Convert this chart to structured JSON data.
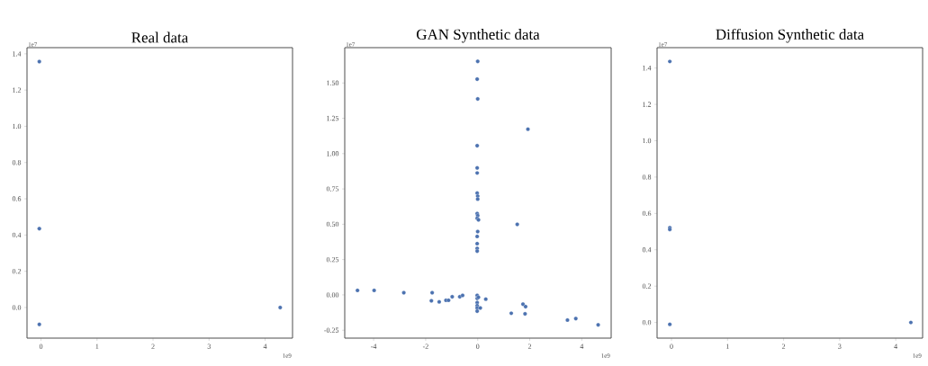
{
  "chart_data": [
    {
      "type": "scatter",
      "title": "Real data",
      "color": "#4c72b0",
      "annotations": [
        "1e7",
        "1e9"
      ],
      "x": [
        -0.03,
        -0.03,
        -0.03,
        4.27
      ],
      "values": [
        1.357,
        0.435,
        -0.093,
        0.0
      ],
      "xlim": [
        -0.25,
        4.49
      ],
      "ylim": [
        -0.169,
        1.434
      ],
      "xticks": [
        0,
        1,
        2,
        3,
        4
      ],
      "yticks": [
        {
          "value": 0,
          "label": "0.0"
        },
        0.2,
        0.4,
        0.6,
        0.8,
        {
          "value": 1,
          "label": "1.0"
        },
        1.2,
        1.4
      ]
    },
    {
      "type": "scatter",
      "title": "GAN Synthetic data",
      "color": "#4c72b0",
      "annotations": [
        "1e7",
        "1e9"
      ],
      "x": [
        0,
        -0.02,
        0,
        1.93,
        -0.02,
        -0.02,
        -0.02,
        -0.02,
        0,
        0,
        -0.02,
        0,
        -0.02,
        0.03,
        1.52,
        0,
        -0.02,
        -0.02,
        -0.02,
        -0.02,
        -4.62,
        -3.98,
        -2.84,
        -1.75,
        -1.78,
        -1.48,
        -1.22,
        -1.12,
        -0.98,
        -0.69,
        -0.58,
        -0.02,
        -0.02,
        0.03,
        -0.02,
        -0.02,
        -0.02,
        -0.02,
        0.1,
        0.31,
        1.29,
        1.74,
        1.84,
        1.82,
        3.45,
        3.77,
        4.63
      ],
      "values": [
        1.653,
        1.527,
        1.387,
        1.173,
        1.056,
        0.899,
        0.863,
        0.72,
        0.699,
        0.678,
        0.576,
        0.561,
        0.542,
        0.531,
        0.499,
        0.448,
        0.414,
        0.363,
        0.329,
        0.31,
        0.032,
        0.032,
        0.015,
        0.015,
        -0.042,
        -0.049,
        -0.038,
        -0.038,
        -0.013,
        -0.013,
        -0.004,
        -0.004,
        -0.025,
        -0.017,
        -0.055,
        -0.076,
        -0.093,
        -0.115,
        -0.093,
        -0.03,
        -0.13,
        -0.066,
        -0.083,
        -0.134,
        -0.178,
        -0.168,
        -0.212
      ],
      "xlim": [
        -5.11,
        5.13
      ],
      "ylim": [
        -0.306,
        1.75
      ],
      "xticks": [
        -4,
        -2,
        0,
        2,
        4
      ],
      "yticks": [
        -0.25,
        {
          "value": 0,
          "label": "0.00"
        },
        0.25,
        {
          "value": 0.5,
          "label": "0.50"
        },
        0.75,
        {
          "value": 1,
          "label": "1.00"
        },
        1.25,
        {
          "value": 1.5,
          "label": "1.50"
        }
      ]
    },
    {
      "type": "scatter",
      "title": "Diffusion Synthetic data",
      "color": "#4c72b0",
      "annotations": [
        "1e7",
        "1e9"
      ],
      "x": [
        -0.03,
        -0.03,
        -0.03,
        -0.03,
        4.27
      ],
      "values": [
        1.436,
        0.522,
        0.512,
        -0.01,
        0.0
      ],
      "xlim": [
        -0.257,
        4.48
      ],
      "ylim": [
        -0.086,
        1.512
      ],
      "xticks": [
        0,
        1,
        2,
        3,
        4
      ],
      "yticks": [
        {
          "value": 0,
          "label": "0.0"
        },
        0.2,
        0.4,
        0.6,
        0.8,
        {
          "value": 1,
          "label": "1.0"
        },
        1.2,
        1.4
      ]
    }
  ]
}
